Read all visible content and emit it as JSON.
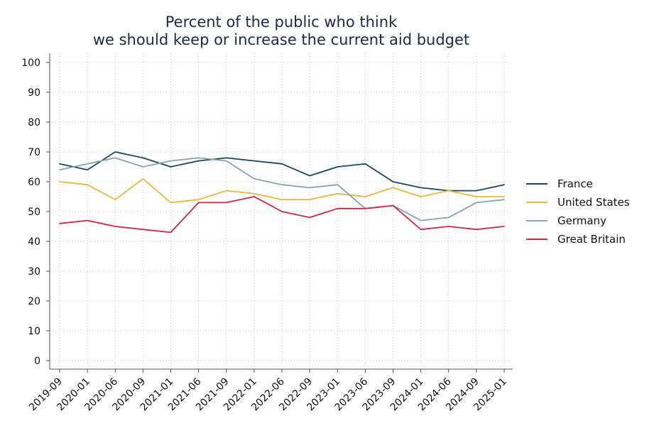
{
  "chart_data": {
    "type": "line",
    "title": [
      "Percent of the public who think",
      "we should keep or increase the current aid budget"
    ],
    "xlabel": "",
    "ylabel": "",
    "ylim": [
      0,
      100
    ],
    "yticks": [
      0,
      10,
      20,
      30,
      40,
      50,
      60,
      70,
      80,
      90,
      100
    ],
    "grid": true,
    "legend_position": "right",
    "categories": [
      "2019-09",
      "2020-01",
      "2020-06",
      "2020-09",
      "2021-01",
      "2021-06",
      "2021-09",
      "2022-01",
      "2022-06",
      "2022-09",
      "2023-01",
      "2023-06",
      "2023-09",
      "2024-01",
      "2024-06",
      "2024-09",
      "2025-01"
    ],
    "series": [
      {
        "name": "France",
        "color": "#17475e",
        "values": [
          66,
          64,
          70,
          68,
          65,
          67,
          68,
          67,
          66,
          62,
          65,
          66,
          60,
          58,
          57,
          57,
          59
        ]
      },
      {
        "name": "United States",
        "color": "#eeb63a",
        "values": [
          60,
          59,
          54,
          61,
          53,
          54,
          57,
          56,
          54,
          54,
          56,
          55,
          58,
          55,
          57,
          55,
          55
        ]
      },
      {
        "name": "Germany",
        "color": "#86a4ad",
        "values": [
          64,
          66,
          68,
          65,
          67,
          68,
          67,
          61,
          59,
          58,
          59,
          51,
          52,
          47,
          48,
          53,
          54
        ]
      },
      {
        "name": "Great Britain",
        "color": "#d6263f",
        "values": [
          46,
          47,
          45,
          44,
          43,
          53,
          53,
          55,
          50,
          48,
          51,
          51,
          52,
          44,
          45,
          44,
          45
        ]
      }
    ]
  }
}
